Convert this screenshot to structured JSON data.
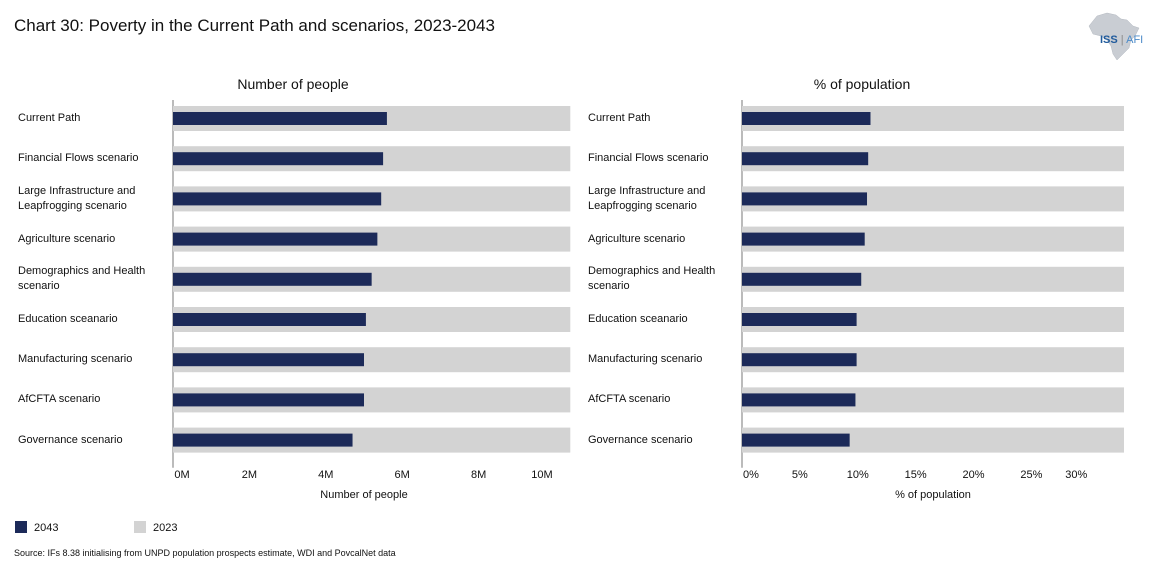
{
  "title": "Chart 30: Poverty in the Current Path and scenarios, 2023-2043",
  "logo": {
    "text_iss": "ISS",
    "text_afi": "AFI",
    "icon": "africa-map-icon"
  },
  "colors": {
    "year_2043": "#1c2a59",
    "year_2023": "#d3d3d3"
  },
  "legend": [
    {
      "label": "2043",
      "color": "#1c2a59"
    },
    {
      "label": "2023",
      "color": "#d3d3d3"
    }
  ],
  "source": "Source: IFs 8.38 initialising from UNPD population prospects estimate, WDI and PovcalNet data",
  "chart_data": [
    {
      "type": "bar",
      "orientation": "horizontal",
      "title": "Number of people",
      "xlabel": "Number of people",
      "categories": [
        [
          "Current Path"
        ],
        [
          "Financial Flows scenario"
        ],
        [
          "Large Infrastructure and",
          "Leapfrogging scenario"
        ],
        [
          "Agriculture scenario"
        ],
        [
          "Demographics and Health",
          "scenario"
        ],
        [
          "Education sceanario"
        ],
        [
          "Manufacturing scenario"
        ],
        [
          "AfCFTA scenario"
        ],
        [
          "Governance scenario"
        ]
      ],
      "xlim": [
        0,
        10
      ],
      "ticks": [
        0,
        2,
        4,
        6,
        8,
        10
      ],
      "tick_labels": [
        "0M",
        "2M",
        "4M",
        "6M",
        "8M",
        "10M"
      ],
      "series": [
        {
          "name": "2023",
          "values": [
            10.4,
            10.4,
            10.4,
            10.4,
            10.4,
            10.4,
            10.4,
            10.4,
            10.4
          ]
        },
        {
          "name": "2043",
          "values": [
            5.6,
            5.5,
            5.45,
            5.35,
            5.2,
            5.05,
            5.0,
            5.0,
            4.7
          ]
        }
      ]
    },
    {
      "type": "bar",
      "orientation": "horizontal",
      "title": "% of population",
      "xlabel": "% of population",
      "categories": [
        [
          "Current Path"
        ],
        [
          "Financial Flows scenario"
        ],
        [
          "Large Infrastructure and",
          "Leapfrogging scenario"
        ],
        [
          "Agriculture scenario"
        ],
        [
          "Demographics and Health",
          "scenario"
        ],
        [
          "Education sceanario"
        ],
        [
          "Manufacturing scenario"
        ],
        [
          "AfCFTA scenario"
        ],
        [
          "Governance scenario"
        ]
      ],
      "xlim": [
        0,
        33
      ],
      "ticks": [
        0,
        5,
        10,
        15,
        20,
        25,
        30
      ],
      "tick_labels": [
        "0%",
        "5%",
        "10%",
        "15%",
        "20%",
        "25%",
        "30%"
      ],
      "series": [
        {
          "name": "2023",
          "values": [
            33,
            33,
            33,
            33,
            33,
            33,
            33,
            33,
            33
          ]
        },
        {
          "name": "2043",
          "values": [
            11.1,
            10.9,
            10.8,
            10.6,
            10.3,
            9.9,
            9.9,
            9.8,
            9.3
          ]
        }
      ]
    }
  ]
}
